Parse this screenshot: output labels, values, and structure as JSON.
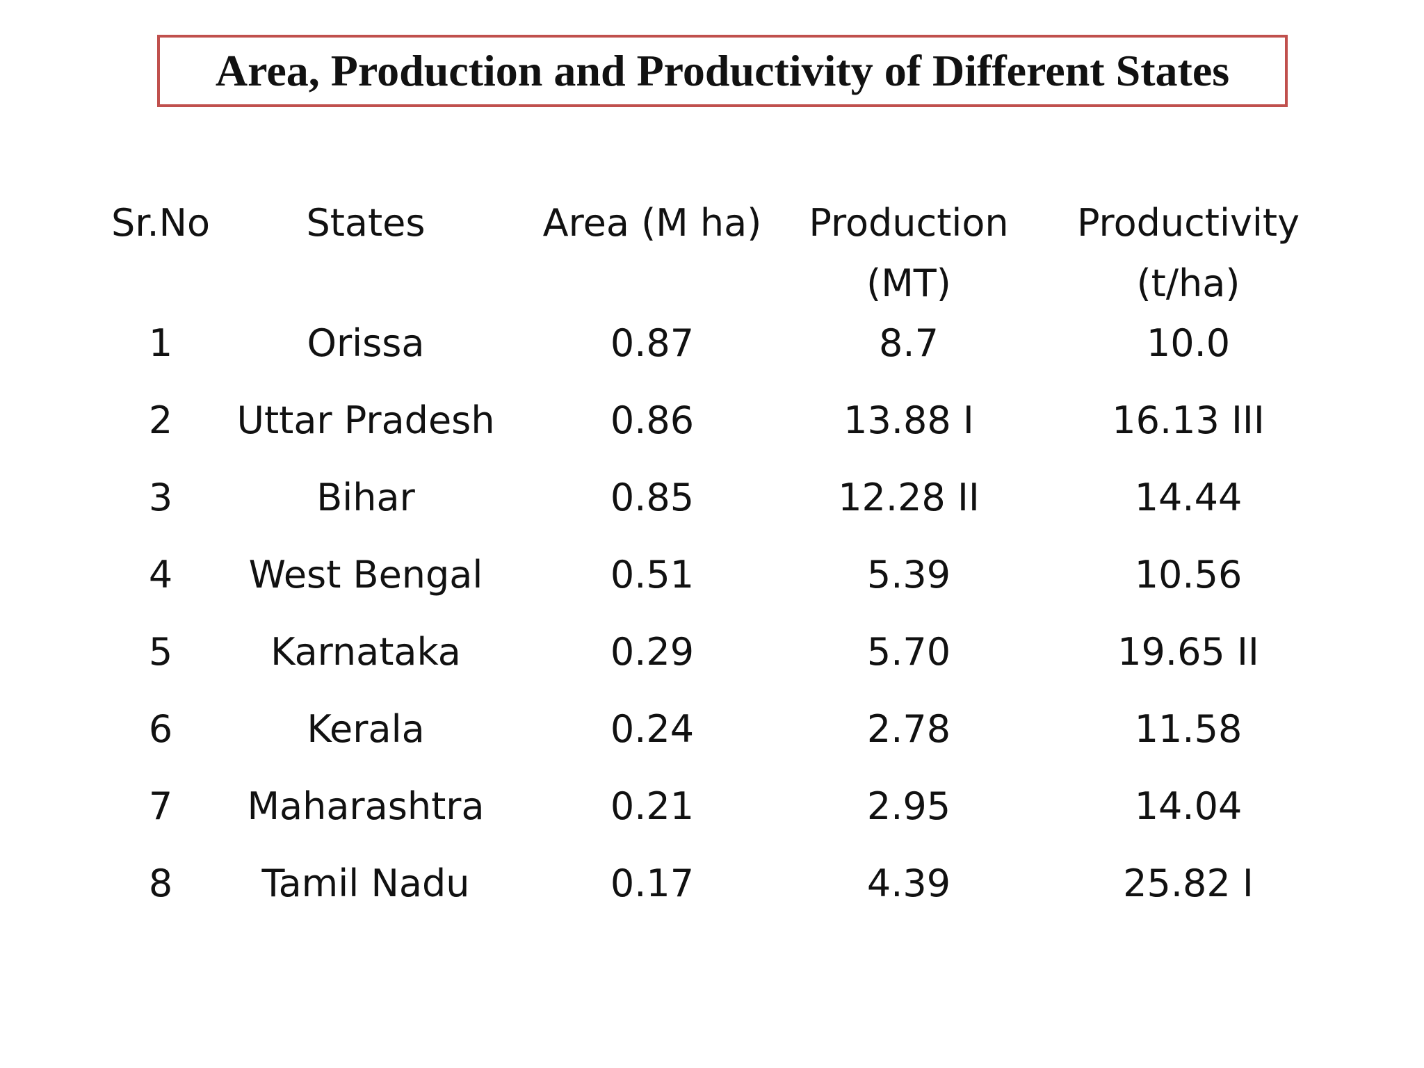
{
  "title": "Area, Production and Productivity of Different States",
  "colors": {
    "title_border": "#c0504d",
    "text": "#111111",
    "background": "#ffffff"
  },
  "table": {
    "headers": [
      {
        "line1": "Sr.No",
        "line2": ""
      },
      {
        "line1": "States",
        "line2": ""
      },
      {
        "line1": "Area (M ha)",
        "line2": ""
      },
      {
        "line1": "Production",
        "line2": "(MT)"
      },
      {
        "line1": "Productivity",
        "line2": "(t/ha)"
      }
    ],
    "rows": [
      [
        "1",
        "Orissa",
        "0.87",
        "8.7",
        "10.0"
      ],
      [
        "2",
        "Uttar Pradesh",
        "0.86",
        "13.88 I",
        "16.13 III"
      ],
      [
        "3",
        "Bihar",
        "0.85",
        "12.28 II",
        "14.44"
      ],
      [
        "4",
        "West Bengal",
        "0.51",
        "5.39",
        "10.56"
      ],
      [
        "5",
        "Karnataka",
        "0.29",
        "5.70",
        "19.65 II"
      ],
      [
        "6",
        "Kerala",
        "0.24",
        "2.78",
        "11.58"
      ],
      [
        "7",
        "Maharashtra",
        "0.21",
        "2.95",
        "14.04"
      ],
      [
        "8",
        "Tamil Nadu",
        "0.17",
        "4.39",
        "25.82 I"
      ]
    ]
  }
}
